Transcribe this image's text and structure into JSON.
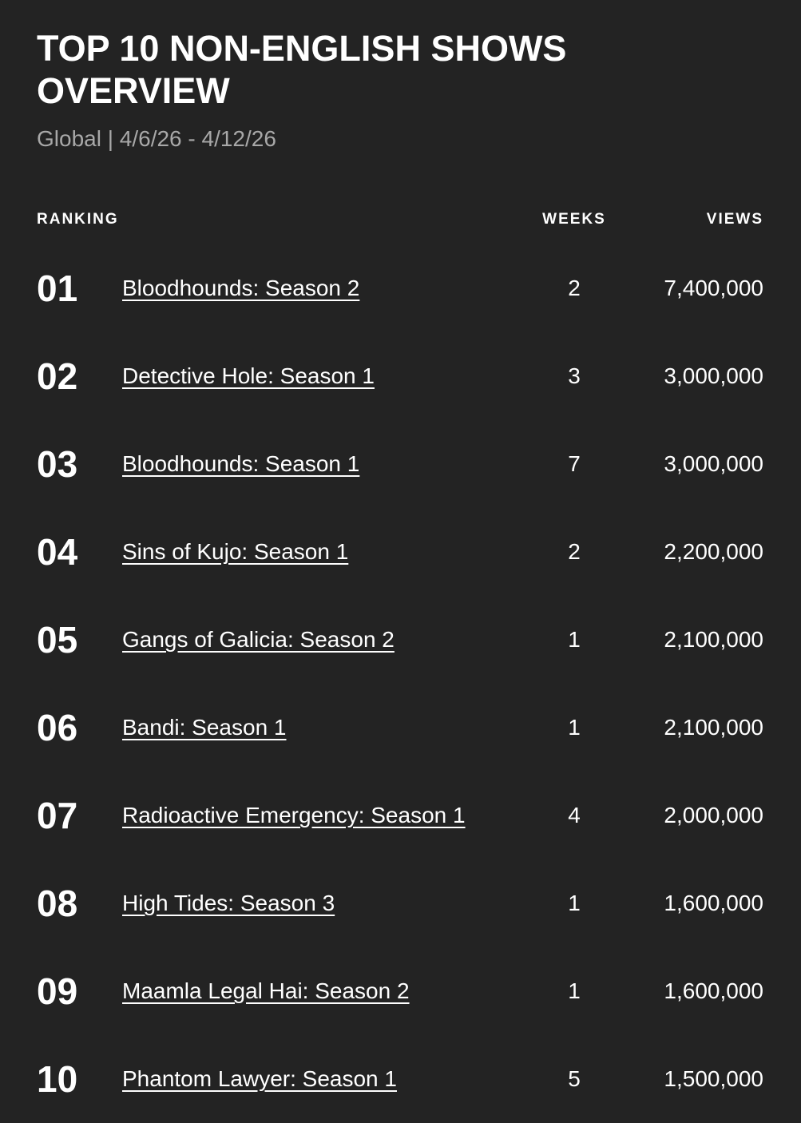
{
  "header": {
    "title": "TOP 10 NON-ENGLISH SHOWS OVERVIEW",
    "subtitle": "Global | 4/6/26 - 4/12/26"
  },
  "table": {
    "columns": [
      "RANKING",
      "WEEKS",
      "VIEWS"
    ],
    "rows": [
      [
        "01",
        "Bloodhounds: Season 2",
        2,
        "7,400,000"
      ],
      [
        "02",
        "Detective Hole: Season 1",
        3,
        "3,000,000"
      ],
      [
        "03",
        "Bloodhounds: Season 1",
        7,
        "3,000,000"
      ],
      [
        "04",
        "Sins of Kujo: Season 1",
        2,
        "2,200,000"
      ],
      [
        "05",
        "Gangs of Galicia: Season 2",
        1,
        "2,100,000"
      ],
      [
        "06",
        "Bandi: Season 1",
        1,
        "2,100,000"
      ],
      [
        "07",
        "Radioactive Emergency: Season 1",
        4,
        "2,000,000"
      ],
      [
        "08",
        "High Tides: Season 3",
        1,
        "1,600,000"
      ],
      [
        "09",
        "Maamla Legal Hai: Season 2",
        1,
        "1,600,000"
      ],
      [
        "10",
        "Phantom Lawyer: Season 1",
        5,
        "1,500,000"
      ]
    ]
  }
}
